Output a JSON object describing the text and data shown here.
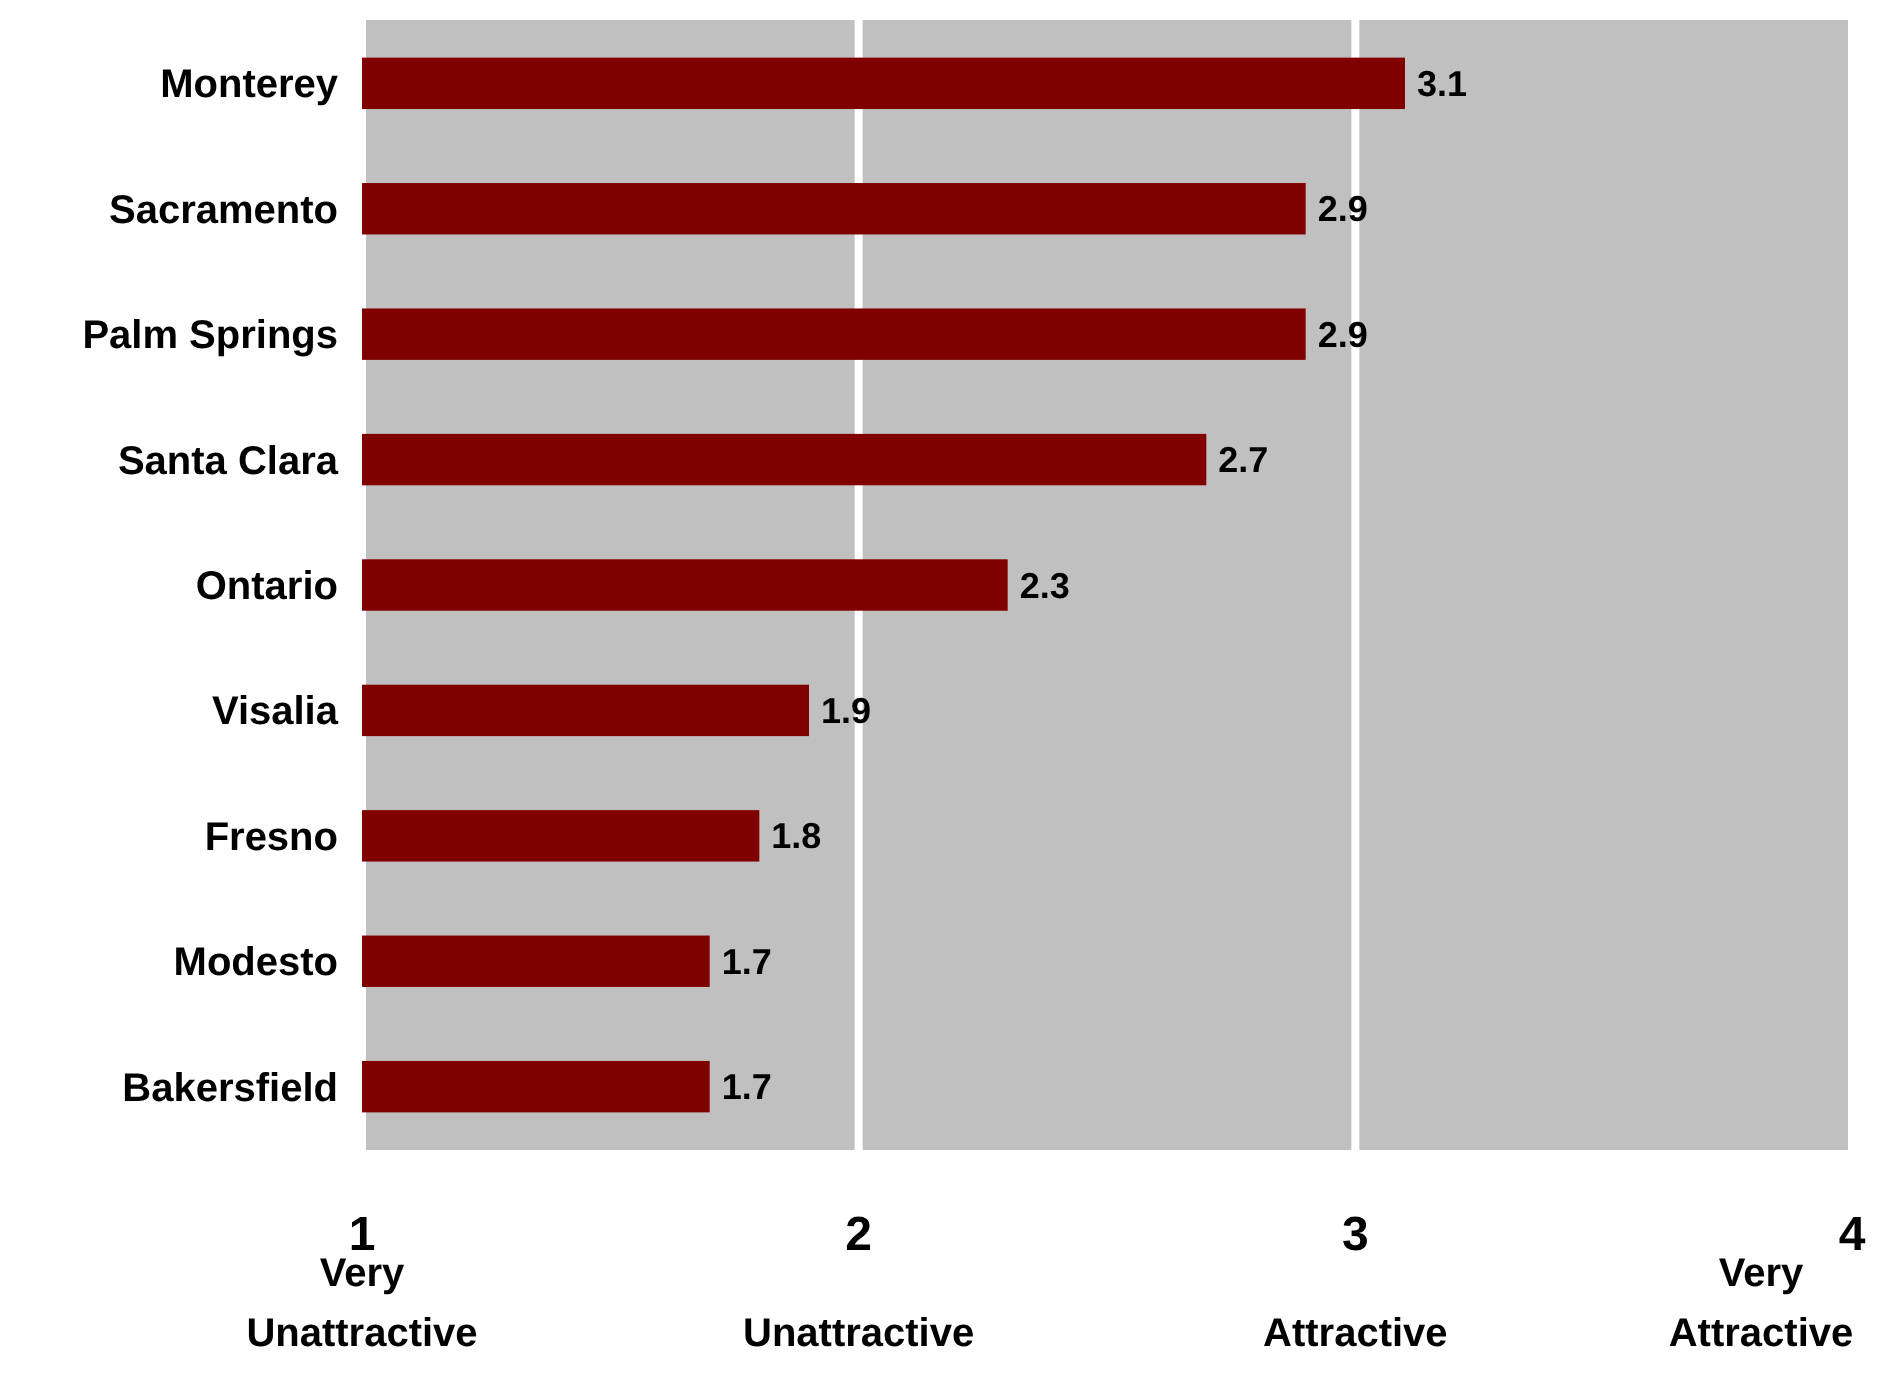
{
  "chart_data": {
    "type": "bar",
    "orientation": "horizontal",
    "categories": [
      "Monterey",
      "Sacramento",
      "Palm Springs",
      "Santa Clara",
      "Ontario",
      "Visalia",
      "Fresno",
      "Modesto",
      "Bakersfield"
    ],
    "values": [
      3.1,
      2.9,
      2.9,
      2.7,
      2.3,
      1.9,
      1.8,
      1.7,
      1.7
    ],
    "color": "#800000",
    "xlim": [
      1,
      4
    ],
    "xticks": [
      1,
      2,
      3,
      4
    ],
    "grid": "x",
    "data_labels": true,
    "annotations": [
      "Very Unattractive",
      "Unattractive",
      "Attractive",
      "Very Attractive"
    ]
  }
}
